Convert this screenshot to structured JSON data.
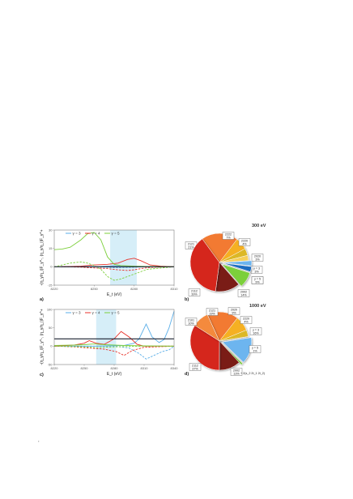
{
  "page": {
    "mark": ","
  },
  "chart_data": [
    {
      "panel": "a)",
      "type": "line",
      "xlabel": "E_t (eV)",
      "ylabel": "-(η_γ/η_i)F_γ^-, (η_γ/η_i)F_γ^+",
      "xlim": [
        8220,
        8310
      ],
      "ylim": [
        -15,
        30
      ],
      "xticks": [
        8220,
        8250,
        8280,
        8310
      ],
      "xtick_labels": [
        "8220",
        "8250",
        "8280",
        "8310"
      ],
      "yticks": [
        -15,
        0,
        15,
        30
      ],
      "ytick_labels": [
        "-15",
        "0",
        "15",
        "30"
      ],
      "highlight": [
        8262,
        8282
      ],
      "hline": 0,
      "series": [
        {
          "name": "γ = 3",
          "color": "#5aaee8",
          "style": "solid",
          "x": [
            8225,
            8240,
            8255,
            8265,
            8275,
            8285,
            8300,
            8310
          ],
          "y": [
            0,
            0.1,
            0.3,
            0.8,
            0.6,
            0.2,
            0.1,
            0
          ]
        },
        {
          "name": "γ = 3",
          "color": "#5aaee8",
          "style": "dashed",
          "x": [
            8225,
            8240,
            8255,
            8265,
            8275,
            8285,
            8300,
            8310
          ],
          "y": [
            0,
            -0.1,
            -0.3,
            -0.8,
            -0.6,
            -0.2,
            -0.1,
            0
          ]
        },
        {
          "name": "γ = 4",
          "color": "#e8322a",
          "style": "solid",
          "x": [
            8225,
            8240,
            8250,
            8260,
            8268,
            8275,
            8280,
            8285,
            8292,
            8300,
            8310
          ],
          "y": [
            0,
            0.5,
            1.5,
            2,
            3,
            6,
            7,
            5,
            1.5,
            0.5,
            0
          ]
        },
        {
          "name": "γ = 4",
          "color": "#e8322a",
          "style": "dashed",
          "x": [
            8225,
            8240,
            8250,
            8260,
            8268,
            8275,
            8280,
            8285,
            8292,
            8300,
            8310
          ],
          "y": [
            0,
            -0.3,
            -1,
            -1.5,
            -2.5,
            -3,
            -2.5,
            -1.5,
            -0.5,
            -0.2,
            0
          ]
        },
        {
          "name": "γ = 5",
          "color": "#7ccf3a",
          "style": "solid",
          "x": [
            8220,
            8226,
            8232,
            8240,
            8245,
            8250,
            8255,
            8260,
            8265,
            8270,
            8280,
            8290,
            8310
          ],
          "y": [
            14,
            14.5,
            16,
            22,
            27,
            28,
            22,
            8,
            2,
            1,
            0.5,
            0.2,
            0
          ]
        },
        {
          "name": "γ = 5",
          "color": "#7ccf3a",
          "style": "dashed",
          "x": [
            8220,
            8226,
            8232,
            8240,
            8245,
            8250,
            8255,
            8260,
            8265,
            8270,
            8280,
            8290,
            8310
          ],
          "y": [
            0,
            1.5,
            3,
            4,
            3,
            1,
            -2,
            -8,
            -11,
            -10,
            -6,
            -2,
            0
          ]
        }
      ]
    },
    {
      "panel": "b)",
      "type": "pie",
      "title": "300 eV",
      "slices": [
        {
          "label": "2121",
          "percent_label": "21%",
          "value": 21,
          "color": "#f27a32"
        },
        {
          "label": "2222",
          "percent_label": "7%",
          "value": 7,
          "color": "#f5b021"
        },
        {
          "label": "2220",
          "percent_label": "4%",
          "value": 4,
          "color": "#dcb826"
        },
        {
          "label": "2020",
          "percent_label": "3%",
          "value": 3,
          "color": "#f6d05a"
        },
        {
          "label": "γ = 3",
          "percent_label": "3%",
          "value": 3,
          "color": "#6db5ef"
        },
        {
          "label": "γ = 5",
          "percent_label": "3%",
          "value": 3,
          "color": "#1e6cc0"
        },
        {
          "label": "γ = 5",
          "percent_label": "9%",
          "value": 9,
          "color": "#7ccf3a"
        },
        {
          "label": "2002",
          "percent_label": "14%",
          "value": 14,
          "color": "#7a1a12"
        },
        {
          "label": "2112",
          "percent_label": "39%",
          "value": 39,
          "color": "#d5271f"
        }
      ]
    },
    {
      "panel": "c)",
      "type": "line",
      "xlabel": "E_t (eV)",
      "ylabel": "-(η_γ/η_i)F_γ^-, (η_γ/η_i)F_γ^+",
      "xlim": [
        8220,
        8340
      ],
      "ylim": [
        -50,
        100
      ],
      "xticks": [
        8220,
        8250,
        8280,
        8310,
        8340
      ],
      "xtick_labels": [
        "8220",
        "8250",
        "8280",
        "8310",
        "8340"
      ],
      "yticks": [
        -50,
        0,
        50,
        100
      ],
      "ytick_labels": [
        "-50",
        "0",
        "50",
        "100"
      ],
      "highlight": [
        8262,
        8282
      ],
      "hline": 20,
      "series": [
        {
          "name": "γ = 3",
          "color": "#5aaee8",
          "style": "solid",
          "x": [
            8220,
            8260,
            8290,
            8300,
            8305,
            8312,
            8318,
            8325,
            8330,
            8335,
            8340
          ],
          "y": [
            0,
            0,
            2,
            8,
            20,
            60,
            25,
            10,
            18,
            50,
            95
          ]
        },
        {
          "name": "γ = 3",
          "color": "#5aaee8",
          "style": "dashed",
          "x": [
            8220,
            8280,
            8295,
            8305,
            8312,
            8320,
            8328,
            8335,
            8340
          ],
          "y": [
            0,
            0,
            -5,
            -20,
            -35,
            -25,
            -15,
            -10,
            0
          ]
        },
        {
          "name": "γ = 4",
          "color": "#e8322a",
          "style": "solid",
          "x": [
            8220,
            8240,
            8250,
            8255,
            8262,
            8270,
            8280,
            8287,
            8295,
            8303,
            8310,
            8320,
            8340
          ],
          "y": [
            0,
            3,
            8,
            15,
            8,
            5,
            20,
            40,
            25,
            5,
            0,
            0,
            0
          ]
        },
        {
          "name": "γ = 4",
          "color": "#e8322a",
          "style": "dashed",
          "x": [
            8220,
            8240,
            8255,
            8270,
            8282,
            8290,
            8298,
            8310,
            8340
          ],
          "y": [
            0,
            -2,
            -5,
            -8,
            -15,
            -25,
            -12,
            -3,
            0
          ]
        },
        {
          "name": "γ = 5",
          "color": "#7ccf3a",
          "style": "solid",
          "x": [
            8220,
            8240,
            8250,
            8260,
            8270,
            8280,
            8290,
            8310,
            8340
          ],
          "y": [
            2,
            3,
            4,
            6,
            4,
            3,
            2,
            1,
            0
          ]
        },
        {
          "name": "γ = 5",
          "color": "#7ccf3a",
          "style": "dashed",
          "x": [
            8220,
            8240,
            8250,
            8260,
            8270,
            8280,
            8290,
            8310,
            8340
          ],
          "y": [
            0,
            -1,
            -2,
            -4,
            -3,
            -2,
            -1,
            0,
            0
          ]
        }
      ]
    },
    {
      "panel": "d)",
      "type": "pie",
      "title": "1000 eV",
      "slices": [
        {
          "label": "2121",
          "percent_label": "19%",
          "value": 19,
          "color": "#f27a32"
        },
        {
          "label": "2020",
          "percent_label": "9%",
          "value": 9,
          "color": "#f5b021"
        },
        {
          "label": "2220",
          "percent_label": "4%",
          "value": 4,
          "color": "#dcb826"
        },
        {
          "label": "γ = 3",
          "percent_label": "16%",
          "value": 16,
          "color": "#6db5ef"
        },
        {
          "label": "γ = 5",
          "percent_label": "1%",
          "value": 1,
          "color": "#7ccf3a"
        },
        {
          "label": "2002",
          "percent_label": "13%",
          "value": 13,
          "color": "#7a1a12"
        },
        {
          "label": "2112",
          "percent_label": "37%",
          "value": 37,
          "color": "#d5271f"
        }
      ],
      "unlabeled_slices": [
        {
          "label": "2101",
          "percent_label": "10%",
          "value": 10,
          "color": "#f48a3e"
        }
      ],
      "note": "+ 2(s_2 2t_1 2t_2)"
    }
  ]
}
